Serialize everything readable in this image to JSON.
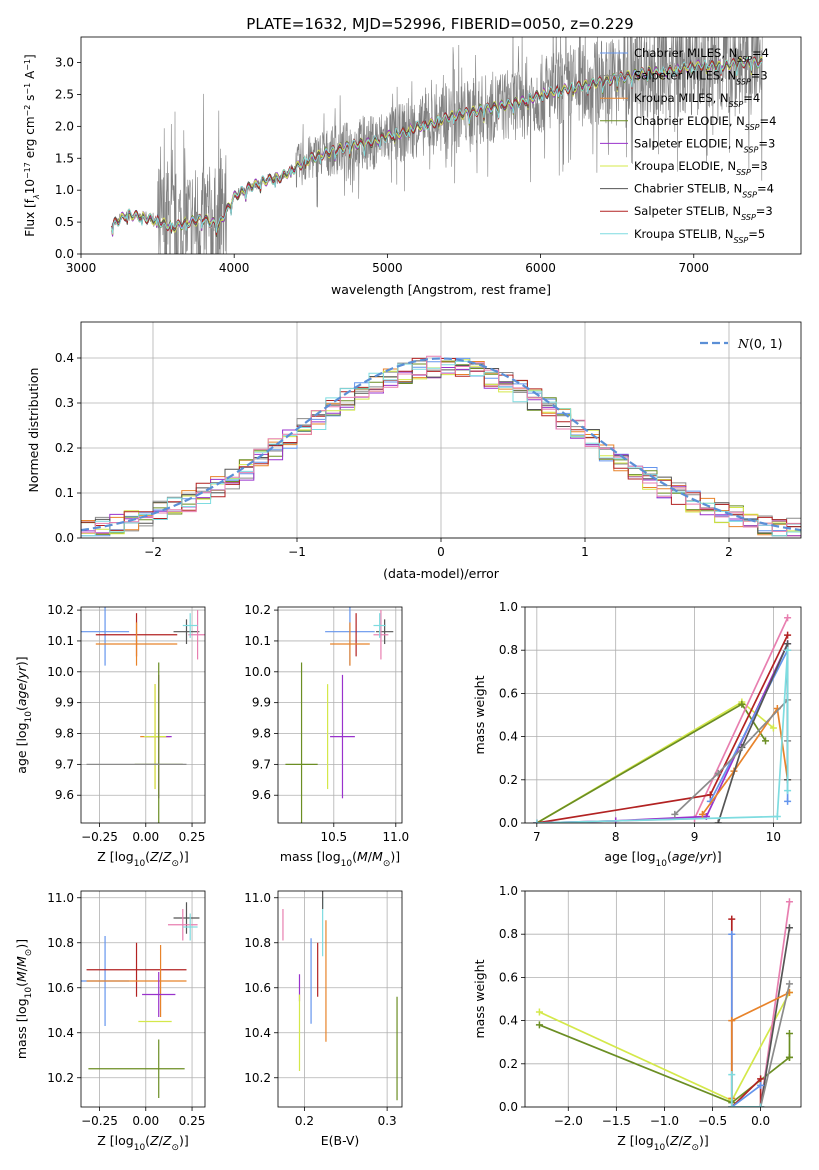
{
  "figure": {
    "title": "PLATE=1632, MJD=52996, FIBERID=0050, z=0.229"
  },
  "colors": {
    "Chabrier MILES": "#6495ED",
    "Salpeter MILES": "#8B8B8B",
    "Kroupa MILES": "#E8832A",
    "Chabrier ELODIE": "#6B8E23",
    "Salpeter ELODIE": "#9932CC",
    "Kroupa ELODIE": "#D4E84A",
    "Chabrier STELIB": "#555555",
    "Salpeter STELIB": "#B22222",
    "Kroupa STELIB": "#7EDCE0",
    "extra": "#E87FB0",
    "data": "#808080",
    "normal": "#5B8FD6"
  },
  "chart_data": [
    {
      "type": "line",
      "xlabel": "wavelength [Angstrom, rest frame]",
      "ylabel_parts": [
        "Flux [f",
        "λ",
        "10",
        "−17",
        " erg cm",
        "−2",
        " s",
        "−1",
        " A",
        "−1",
        "]"
      ],
      "xlim": [
        3000,
        7700
      ],
      "ylim": [
        0,
        3.4
      ],
      "xticks": [
        "3000",
        "4000",
        "5000",
        "6000",
        "7000"
      ],
      "yticks": [
        "0.0",
        "0.5",
        "1.0",
        "1.5",
        "2.0",
        "2.5",
        "3.0"
      ],
      "legend": [
        {
          "name": "Chabrier MILES",
          "n": "4"
        },
        {
          "name": "Salpeter MILES",
          "n": "3"
        },
        {
          "name": "Kroupa MILES",
          "n": "4"
        },
        {
          "name": "Chabrier ELODIE",
          "n": "4"
        },
        {
          "name": "Salpeter ELODIE",
          "n": "3"
        },
        {
          "name": "Kroupa ELODIE",
          "n": "3"
        },
        {
          "name": "Chabrier STELIB",
          "n": "4"
        },
        {
          "name": "Salpeter STELIB",
          "n": "3"
        },
        {
          "name": "Kroupa STELIB",
          "n": "5"
        }
      ],
      "legend_prefix": "N",
      "legend_sub": "SSP",
      "legend_placement": "right",
      "data_wavelength_range": [
        3200,
        7450
      ],
      "model_continuum": [
        [
          3200,
          0.45
        ],
        [
          3300,
          0.62
        ],
        [
          3400,
          0.58
        ],
        [
          3500,
          0.52
        ],
        [
          3600,
          0.42
        ],
        [
          3700,
          0.5
        ],
        [
          3800,
          0.55
        ],
        [
          3900,
          0.45
        ],
        [
          4000,
          0.9
        ],
        [
          4100,
          1.05
        ],
        [
          4200,
          1.15
        ],
        [
          4300,
          1.2
        ],
        [
          4400,
          1.35
        ],
        [
          4500,
          1.5
        ],
        [
          4600,
          1.58
        ],
        [
          4700,
          1.65
        ],
        [
          4800,
          1.72
        ],
        [
          4900,
          1.75
        ],
        [
          5000,
          1.85
        ],
        [
          5100,
          1.9
        ],
        [
          5200,
          2.0
        ],
        [
          5300,
          2.05
        ],
        [
          5400,
          2.15
        ],
        [
          5500,
          2.2
        ],
        [
          5600,
          2.25
        ],
        [
          5700,
          2.3
        ],
        [
          5800,
          2.35
        ],
        [
          5900,
          2.4
        ],
        [
          6000,
          2.5
        ],
        [
          6100,
          2.55
        ],
        [
          6200,
          2.6
        ],
        [
          6300,
          2.65
        ],
        [
          6400,
          2.7
        ],
        [
          6500,
          2.75
        ],
        [
          6600,
          2.8
        ],
        [
          6700,
          2.85
        ],
        [
          6800,
          2.85
        ],
        [
          6900,
          2.9
        ],
        [
          7000,
          2.95
        ],
        [
          7100,
          2.95
        ],
        [
          7200,
          2.95
        ],
        [
          7300,
          3.0
        ],
        [
          7400,
          3.0
        ],
        [
          7450,
          3.0
        ]
      ],
      "grid": false
    },
    {
      "type": "histogram",
      "xlabel": "(data-model)/error",
      "ylabel": "Normed distribution",
      "xlim": [
        -2.5,
        2.5
      ],
      "ylim": [
        0,
        0.48
      ],
      "xticks": [
        "−2",
        "−1",
        "0",
        "1",
        "2"
      ],
      "yticks": [
        "0.0",
        "0.1",
        "0.2",
        "0.3",
        "0.4"
      ],
      "legend": [
        {
          "label_main": "N",
          "label_rest": "(0, 1)"
        }
      ],
      "legend_placement": "top-right",
      "bin_width": 0.1,
      "grid": true
    },
    {
      "type": "errorbar",
      "xlabel": "Z [log10(Z/Z⊙)]",
      "ylabel": "age [log10(age/yr)]",
      "xlim": [
        -0.35,
        0.32
      ],
      "ylim": [
        9.51,
        10.21
      ],
      "xticks": [
        "−0.25",
        "0.00",
        "0.25"
      ],
      "xtick_vals": [
        -0.25,
        0,
        0.25
      ],
      "yticks": [
        "9.6",
        "9.7",
        "9.8",
        "9.9",
        "10.0",
        "10.1",
        "10.2"
      ],
      "ytick_vals": [
        9.6,
        9.7,
        9.8,
        9.9,
        10.0,
        10.1,
        10.2
      ],
      "points": [
        {
          "c": "Chabrier MILES",
          "x": -0.22,
          "xe": 0.13,
          "y": 10.13,
          "ye": 0.11
        },
        {
          "c": "Salpeter STELIB",
          "x": -0.05,
          "xe": 0.22,
          "y": 10.12,
          "ye": 0.07
        },
        {
          "c": "Kroupa MILES",
          "x": -0.05,
          "xe": 0.22,
          "y": 10.09,
          "ye": 0.07
        },
        {
          "c": "Chabrier STELIB",
          "x": 0.22,
          "xe": 0.07,
          "y": 10.13,
          "ye": 0.04
        },
        {
          "c": "extra",
          "x": 0.28,
          "xe": 0.05,
          "y": 10.12,
          "ye": 0.08
        },
        {
          "c": "Kroupa STELIB",
          "x": 0.24,
          "xe": 0.04,
          "y": 10.15,
          "ye": 0.04
        },
        {
          "c": "Kroupa MILES",
          "x": 0.05,
          "xe": 0.08,
          "y": 9.79,
          "ye": 0.17
        },
        {
          "c": "Salpeter ELODIE",
          "x": 0.07,
          "xe": 0.07,
          "y": 9.79,
          "ye": 0.2
        },
        {
          "c": "Kroupa ELODIE",
          "x": 0.05,
          "xe": 0.06,
          "y": 9.79,
          "ye": 0.17
        },
        {
          "c": "Chabrier ELODIE",
          "x": 0.07,
          "xe": 0.13,
          "y": 9.7,
          "ye": 0.33
        },
        {
          "c": "Salpeter MILES",
          "x": -0.05,
          "xe": 0.27,
          "y": 9.7,
          "ye": 0.0
        }
      ],
      "grid": true
    },
    {
      "type": "errorbar",
      "xlabel": "mass [log10(M/M⊙)]",
      "xlim": [
        10.05,
        11.05
      ],
      "ylim": [
        9.51,
        10.21
      ],
      "xticks": [
        "10.5",
        "11.0"
      ],
      "xtick_vals": [
        10.5,
        11.0
      ],
      "yticks": [
        "9.6",
        "9.7",
        "9.8",
        "9.9",
        "10.0",
        "10.1",
        "10.2"
      ],
      "ytick_vals": [
        9.6,
        9.7,
        9.8,
        9.9,
        10.0,
        10.1,
        10.2
      ],
      "points": [
        {
          "c": "Chabrier MILES",
          "x": 10.63,
          "xe": 0.2,
          "y": 10.13,
          "ye": 0.11
        },
        {
          "c": "Salpeter STELIB",
          "x": 10.68,
          "xe": 0.0,
          "y": 10.12,
          "ye": 0.07
        },
        {
          "c": "Kroupa MILES",
          "x": 10.63,
          "xe": 0.16,
          "y": 10.09,
          "ye": 0.07
        },
        {
          "c": "Chabrier STELIB",
          "x": 10.91,
          "xe": 0.07,
          "y": 10.13,
          "ye": 0.04
        },
        {
          "c": "extra",
          "x": 10.88,
          "xe": 0.06,
          "y": 10.12,
          "ye": 0.08
        },
        {
          "c": "Kroupa STELIB",
          "x": 10.87,
          "xe": 0.05,
          "y": 10.15,
          "ye": 0.04
        },
        {
          "c": "Kroupa ELODIE",
          "x": 10.45,
          "xe": 0.0,
          "y": 9.79,
          "ye": 0.17
        },
        {
          "c": "Salpeter ELODIE",
          "x": 10.57,
          "xe": 0.0,
          "y": 9.79,
          "ye": 0.2
        },
        {
          "c": "Salpeter ELODIE",
          "x": 10.57,
          "xe": 0.1,
          "y": 9.79,
          "ye": 0.0
        },
        {
          "c": "Chabrier ELODIE",
          "x": 10.24,
          "xe": 0.13,
          "y": 9.7,
          "ye": 0.33
        }
      ],
      "grid": true
    },
    {
      "type": "line",
      "xlabel": "age [log10(age/yr)]",
      "ylabel": "mass weight",
      "xlim": [
        6.85,
        10.35
      ],
      "ylim": [
        0,
        1.0
      ],
      "xticks": [
        "7",
        "8",
        "9",
        "10"
      ],
      "xtick_vals": [
        7,
        8,
        9,
        10
      ],
      "yticks": [
        "0.0",
        "0.2",
        "0.4",
        "0.6",
        "0.8",
        "1.0"
      ],
      "ytick_vals": [
        0,
        0.2,
        0.4,
        0.6,
        0.8,
        1.0
      ],
      "series": [
        {
          "c": "Kroupa ELODIE",
          "x": [
            7.0,
            9.6,
            10.0
          ],
          "y": [
            0.0,
            0.56,
            0.44
          ]
        },
        {
          "c": "Chabrier ELODIE",
          "x": [
            7.0,
            9.6,
            9.9
          ],
          "y": [
            0.0,
            0.55,
            0.38
          ]
        },
        {
          "c": "extra",
          "x": [
            7.0,
            9.0,
            10.18
          ],
          "y": [
            0.0,
            0.02,
            0.95
          ]
        },
        {
          "c": "Salpeter STELIB",
          "x": [
            7.0,
            9.2,
            10.18
          ],
          "y": [
            0.0,
            0.13,
            0.87
          ]
        },
        {
          "c": "Salpeter ELODIE",
          "x": [
            7.0,
            8.0,
            9.15,
            10.18
          ],
          "y": [
            0.0,
            0.01,
            0.03,
            0.83
          ]
        },
        {
          "c": "Chabrier MILES",
          "x": [
            9.2,
            10.18,
            10.18
          ],
          "y": [
            0.1,
            0.8,
            0.1
          ]
        },
        {
          "c": "Kroupa MILES",
          "x": [
            9.1,
            9.5,
            10.05,
            10.18
          ],
          "y": [
            0.04,
            0.24,
            0.53,
            0.2
          ]
        },
        {
          "c": "Chabrier STELIB",
          "x": [
            9.3,
            9.6,
            10.18,
            10.18
          ],
          "y": [
            0.0,
            0.35,
            0.83,
            0.2
          ]
        },
        {
          "c": "Salpeter MILES",
          "x": [
            8.75,
            9.3,
            10.18,
            10.18
          ],
          "y": [
            0.04,
            0.23,
            0.57,
            0.38
          ]
        },
        {
          "c": "Kroupa STELIB",
          "x": [
            7.0,
            10.05,
            10.18,
            10.18
          ],
          "y": [
            0.0,
            0.03,
            0.8,
            0.15
          ]
        }
      ],
      "grid": true
    },
    {
      "type": "errorbar",
      "xlabel": "Z [log10(Z/Z⊙)]",
      "ylabel": "mass [log10(M/M⊙)]",
      "xlim": [
        -0.35,
        0.32
      ],
      "ylim": [
        10.07,
        11.03
      ],
      "xticks": [
        "−0.25",
        "0.00",
        "0.25"
      ],
      "xtick_vals": [
        -0.25,
        0,
        0.25
      ],
      "yticks": [
        "10.2",
        "10.4",
        "10.6",
        "10.8",
        "11.0"
      ],
      "ytick_vals": [
        10.2,
        10.4,
        10.6,
        10.8,
        11.0
      ],
      "points": [
        {
          "c": "Chabrier MILES",
          "x": -0.22,
          "xe": 0.13,
          "y": 10.63,
          "ye": 0.2
        },
        {
          "c": "Salpeter STELIB",
          "x": -0.05,
          "xe": 0.27,
          "y": 10.68,
          "ye": 0.12
        },
        {
          "c": "Kroupa MILES",
          "x": -0.05,
          "xe": 0.27,
          "y": 10.63,
          "ye": 0.0
        },
        {
          "c": "Kroupa MILES",
          "x": 0.08,
          "xe": 0.0,
          "y": 10.63,
          "ye": 0.16
        },
        {
          "c": "Salpeter ELODIE",
          "x": 0.07,
          "xe": 0.09,
          "y": 10.57,
          "ye": 0.1
        },
        {
          "c": "Kroupa ELODIE",
          "x": 0.05,
          "xe": 0.09,
          "y": 10.45,
          "ye": 0.0
        },
        {
          "c": "Chabrier ELODIE",
          "x": -0.05,
          "xe": 0.26,
          "y": 10.24,
          "ye": 0.0
        },
        {
          "c": "Chabrier ELODIE",
          "x": 0.07,
          "xe": 0.0,
          "y": 10.24,
          "ye": 0.13
        },
        {
          "c": "Chabrier STELIB",
          "x": 0.22,
          "xe": 0.07,
          "y": 10.91,
          "ye": 0.07
        },
        {
          "c": "extra",
          "x": 0.2,
          "xe": 0.08,
          "y": 10.88,
          "ye": 0.07
        },
        {
          "c": "Kroupa STELIB",
          "x": 0.24,
          "xe": 0.04,
          "y": 10.87,
          "ye": 0.06
        },
        {
          "c": "Chabrier MILES",
          "x": -0.3,
          "xe": 0.0,
          "y": 10.61,
          "ye": 0.0
        }
      ],
      "grid": true
    },
    {
      "type": "errorbar",
      "xlabel": "E(B-V)",
      "xlim": [
        0.168,
        0.318
      ],
      "ylim": [
        10.07,
        11.03
      ],
      "xticks": [
        "0.2",
        "0.3"
      ],
      "xtick_vals": [
        0.2,
        0.3
      ],
      "yticks": [
        "10.2",
        "10.4",
        "10.6",
        "10.8",
        "11.0"
      ],
      "ytick_vals": [
        10.2,
        10.4,
        10.6,
        10.8,
        11.0
      ],
      "points": [
        {
          "c": "extra",
          "x": 0.174,
          "xe": 0.0,
          "y": 10.88,
          "ye": 0.07
        },
        {
          "c": "Salpeter ELODIE",
          "x": 0.194,
          "xe": 0.0,
          "y": 10.6,
          "ye": 0.06
        },
        {
          "c": "Kroupa ELODIE",
          "x": 0.194,
          "xe": 0.0,
          "y": 10.4,
          "ye": 0.17
        },
        {
          "c": "Chabrier MILES",
          "x": 0.208,
          "xe": 0.0,
          "y": 10.63,
          "ye": 0.19
        },
        {
          "c": "Salpeter STELIB",
          "x": 0.216,
          "xe": 0.0,
          "y": 10.68,
          "ye": 0.12
        },
        {
          "c": "Kroupa STELIB",
          "x": 0.222,
          "xe": 0.0,
          "y": 10.87,
          "ye": 0.13
        },
        {
          "c": "Chabrier STELIB",
          "x": 0.222,
          "xe": 0.0,
          "y": 10.99,
          "ye": 0.04
        },
        {
          "c": "Kroupa MILES",
          "x": 0.226,
          "xe": 0.0,
          "y": 10.63,
          "ye": 0.27
        },
        {
          "c": "Chabrier ELODIE",
          "x": 0.312,
          "xe": 0.0,
          "y": 10.33,
          "ye": 0.23
        }
      ],
      "grid": true
    },
    {
      "type": "line",
      "xlabel": "Z [log10(Z/Z⊙)]",
      "ylabel": "mass weight",
      "xlim": [
        -2.45,
        0.42
      ],
      "ylim": [
        0,
        1.0
      ],
      "xticks": [
        "−2.0",
        "−1.5",
        "−1.0",
        "−0.5",
        "0.0"
      ],
      "xtick_vals": [
        -2.0,
        -1.5,
        -1.0,
        -0.5,
        0.0
      ],
      "yticks": [
        "0.0",
        "0.2",
        "0.4",
        "0.6",
        "0.8",
        "1.0"
      ],
      "ytick_vals": [
        0,
        0.2,
        0.4,
        0.6,
        0.8,
        1.0
      ],
      "series": [
        {
          "c": "Kroupa ELODIE",
          "x": [
            -2.3,
            -0.3,
            0.3
          ],
          "y": [
            0.44,
            0.03,
            0.53
          ]
        },
        {
          "c": "Chabrier ELODIE",
          "x": [
            -2.3,
            -0.3,
            0.3
          ],
          "y": [
            0.38,
            0.02,
            0.23
          ]
        },
        {
          "c": "Chabrier ELODIE",
          "x": [
            0.3,
            0.3
          ],
          "y": [
            0.23,
            0.34
          ]
        },
        {
          "c": "Salpeter STELIB",
          "x": [
            -0.3,
            -0.3,
            0.0,
            0.0
          ],
          "y": [
            0.87,
            0.0,
            0.13,
            0.0
          ]
        },
        {
          "c": "extra",
          "x": [
            0.0,
            0.3
          ],
          "y": [
            0.0,
            0.95
          ]
        },
        {
          "c": "Chabrier STELIB",
          "x": [
            0.0,
            0.3
          ],
          "y": [
            0.0,
            0.83
          ]
        },
        {
          "c": "Chabrier MILES",
          "x": [
            -0.3,
            -0.3,
            0.0
          ],
          "y": [
            0.8,
            0.0,
            0.1
          ]
        },
        {
          "c": "Kroupa MILES",
          "x": [
            -0.3,
            -0.3,
            0.3
          ],
          "y": [
            0.04,
            0.4,
            0.53
          ]
        },
        {
          "c": "Salpeter MILES",
          "x": [
            -0.3,
            0.0,
            0.3
          ],
          "y": [
            0.0,
            0.0,
            0.57
          ]
        },
        {
          "c": "Kroupa STELIB",
          "x": [
            -0.3,
            -0.3,
            0.0
          ],
          "y": [
            0.15,
            0.0,
            0.0
          ]
        }
      ],
      "grid": true
    }
  ]
}
